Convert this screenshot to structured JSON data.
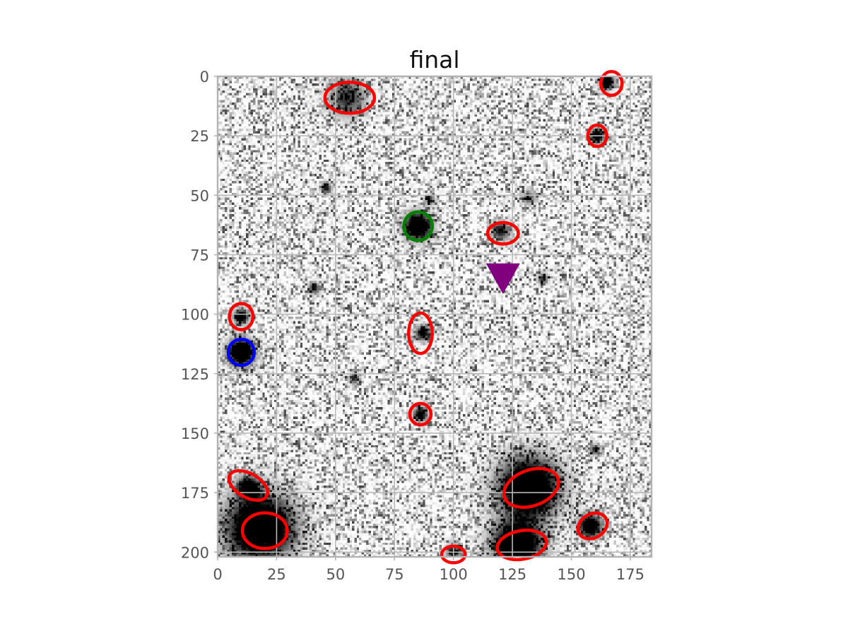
{
  "chart_data": {
    "type": "image",
    "title": "final",
    "xlabel": "",
    "ylabel": "",
    "xlim": [
      0,
      184
    ],
    "ylim": [
      202,
      0
    ],
    "x_ticks": [
      0,
      25,
      50,
      75,
      100,
      125,
      150,
      175
    ],
    "y_ticks": [
      0,
      25,
      50,
      75,
      100,
      125,
      150,
      175,
      200
    ],
    "grid": true,
    "colormap": "gray_r",
    "sources": [
      {
        "x": 18,
        "y": 190,
        "r": 18,
        "amp": 1.0
      },
      {
        "x": 132,
        "y": 173,
        "r": 16,
        "amp": 1.0
      },
      {
        "x": 127,
        "y": 197,
        "r": 13,
        "amp": 1.0
      },
      {
        "x": 10,
        "y": 116,
        "r": 7,
        "amp": 1.0
      },
      {
        "x": 85,
        "y": 63,
        "r": 7,
        "amp": 1.0
      },
      {
        "x": 158,
        "y": 189,
        "r": 6,
        "amp": 0.9
      },
      {
        "x": 13,
        "y": 173,
        "r": 6,
        "amp": 0.8
      },
      {
        "x": 55,
        "y": 9,
        "r": 10,
        "amp": 0.5
      },
      {
        "x": 165,
        "y": 2,
        "r": 4,
        "amp": 0.9
      },
      {
        "x": 161,
        "y": 25,
        "r": 4,
        "amp": 0.8
      },
      {
        "x": 120,
        "y": 65,
        "r": 5,
        "amp": 0.6
      },
      {
        "x": 10,
        "y": 101,
        "r": 4,
        "amp": 0.8
      },
      {
        "x": 87,
        "y": 108,
        "r": 4,
        "amp": 0.7
      },
      {
        "x": 86,
        "y": 142,
        "r": 4,
        "amp": 0.7
      },
      {
        "x": 100,
        "y": 200,
        "r": 4,
        "amp": 0.6
      },
      {
        "x": 46,
        "y": 47,
        "r": 3,
        "amp": 0.6
      },
      {
        "x": 41,
        "y": 89,
        "r": 3,
        "amp": 0.6
      },
      {
        "x": 138,
        "y": 85,
        "r": 3,
        "amp": 0.5
      },
      {
        "x": 132,
        "y": 51,
        "r": 4,
        "amp": 0.4
      },
      {
        "x": 58,
        "y": 127,
        "r": 3,
        "amp": 0.5
      },
      {
        "x": 160,
        "y": 157,
        "r": 3,
        "amp": 0.5
      },
      {
        "x": 90,
        "y": 52,
        "r": 3,
        "amp": 0.4
      }
    ],
    "ellipses": [
      {
        "label": "target",
        "color": "#0000ff",
        "cx": 10,
        "cy": 116,
        "w": 11,
        "h": 11,
        "angle": 0
      },
      {
        "label": "reference",
        "color": "#008000",
        "cx": 85,
        "cy": 63,
        "w": 12,
        "h": 12,
        "angle": 0
      },
      {
        "label": "source",
        "color": "#ff0000",
        "cx": 56,
        "cy": 9,
        "w": 21,
        "h": 13,
        "angle": 0
      },
      {
        "label": "source",
        "color": "#ff0000",
        "cx": 167,
        "cy": 3,
        "w": 9,
        "h": 10,
        "angle": 0
      },
      {
        "label": "source",
        "color": "#ff0000",
        "cx": 161,
        "cy": 25,
        "w": 8,
        "h": 9,
        "angle": 0
      },
      {
        "label": "source",
        "color": "#ff0000",
        "cx": 121,
        "cy": 66,
        "w": 13,
        "h": 9,
        "angle": 0
      },
      {
        "label": "source",
        "color": "#ff0000",
        "cx": 10,
        "cy": 101,
        "w": 10,
        "h": 11,
        "angle": 0
      },
      {
        "label": "source",
        "color": "#ff0000",
        "cx": 86,
        "cy": 108,
        "w": 10,
        "h": 17,
        "angle": 0
      },
      {
        "label": "source",
        "color": "#ff0000",
        "cx": 86,
        "cy": 142,
        "w": 9,
        "h": 9,
        "angle": 0
      },
      {
        "label": "source",
        "color": "#ff0000",
        "cx": 13,
        "cy": 172,
        "w": 18,
        "h": 10,
        "angle": 30
      },
      {
        "label": "source",
        "color": "#ff0000",
        "cx": 20,
        "cy": 191,
        "w": 19,
        "h": 15,
        "angle": 0
      },
      {
        "label": "source",
        "color": "#ff0000",
        "cx": 100,
        "cy": 201,
        "w": 10,
        "h": 7,
        "angle": 0
      },
      {
        "label": "source",
        "color": "#ff0000",
        "cx": 133,
        "cy": 173,
        "w": 24,
        "h": 15,
        "angle": -20
      },
      {
        "label": "source",
        "color": "#ff0000",
        "cx": 129,
        "cy": 197,
        "w": 21,
        "h": 12,
        "angle": -10
      },
      {
        "label": "source",
        "color": "#ff0000",
        "cx": 159,
        "cy": 189,
        "w": 13,
        "h": 10,
        "angle": -30
      }
    ],
    "marker": {
      "shape": "triangle-down",
      "color": "#800080",
      "x": 121,
      "y": 84
    }
  }
}
